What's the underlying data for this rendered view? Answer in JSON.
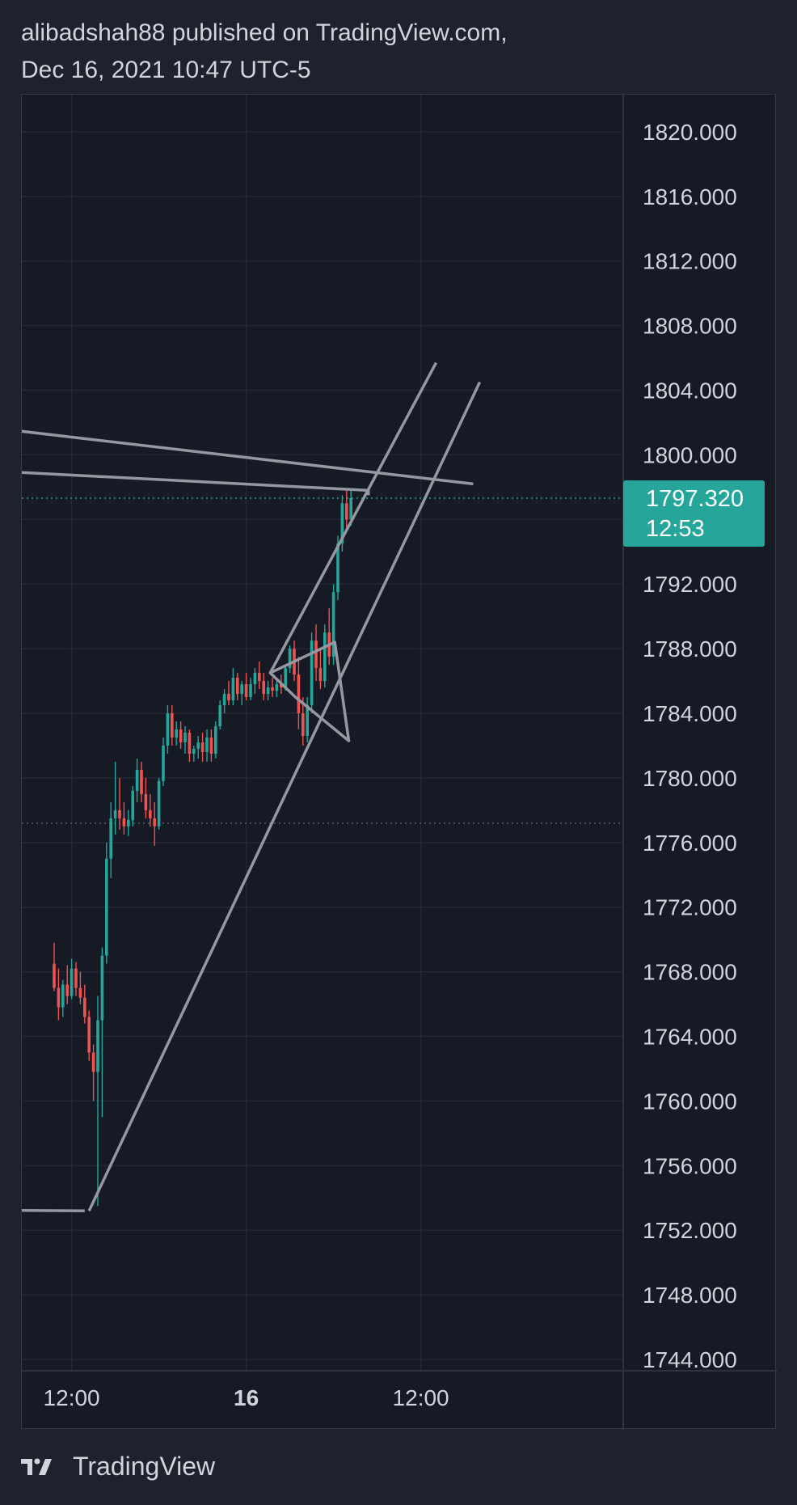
{
  "header": {
    "line1": "alibadshah88 published on TradingView.com,",
    "line2": "Dec 16, 2021 10:47 UTC-5"
  },
  "footer": {
    "brand": "TradingView"
  },
  "colors": {
    "background": "#161a25",
    "page": "#1e222d",
    "grid": "#232733",
    "up": "#26a69a",
    "down": "#ef5350",
    "drawing": "#9598a1",
    "price_tag": "#26a69a",
    "text": "#d1d4dc"
  },
  "chart_data": {
    "type": "candlestick",
    "symbol_timeframe": "intraday",
    "ylim": [
      1743.3,
      1822.3
    ],
    "y_ticks": [
      "1744.000",
      "1748.000",
      "1752.000",
      "1756.000",
      "1760.000",
      "1764.000",
      "1768.000",
      "1772.000",
      "1776.000",
      "1780.000",
      "1784.000",
      "1788.000",
      "1792.000",
      "1796.000",
      "1800.000",
      "1804.000",
      "1808.000",
      "1812.000",
      "1816.000",
      "1820.000"
    ],
    "x_ticks": [
      {
        "label": "12:00",
        "bold": false,
        "bar": 4
      },
      {
        "label": "16",
        "bold": true,
        "bar": 44
      },
      {
        "label": "12:00",
        "bold": false,
        "bar": 84
      }
    ],
    "last_price": {
      "value": "1797.320",
      "countdown": "12:53",
      "price": 1797.32
    },
    "reference_line": 1777.2,
    "candles": [
      [
        1768.5,
        1769.8,
        1766.8,
        1767.0
      ],
      [
        1767.0,
        1768.2,
        1765.0,
        1765.8
      ],
      [
        1765.8,
        1767.5,
        1765.2,
        1767.2
      ],
      [
        1767.2,
        1768.4,
        1766.0,
        1766.5
      ],
      [
        1766.5,
        1768.8,
        1766.3,
        1768.2
      ],
      [
        1768.2,
        1768.6,
        1766.5,
        1767.0
      ],
      [
        1767.0,
        1768.0,
        1766.0,
        1766.4
      ],
      [
        1766.4,
        1767.2,
        1764.8,
        1765.2
      ],
      [
        1765.2,
        1765.6,
        1762.5,
        1763.0
      ],
      [
        1763.0,
        1763.5,
        1760.0,
        1761.8
      ],
      [
        1761.8,
        1766.5,
        1753.5,
        1765.0
      ],
      [
        1765.0,
        1769.5,
        1759.0,
        1769.0
      ],
      [
        1769.0,
        1776.0,
        1768.5,
        1775.0
      ],
      [
        1775.0,
        1778.5,
        1773.8,
        1777.5
      ],
      [
        1777.5,
        1781.0,
        1776.5,
        1778.0
      ],
      [
        1778.0,
        1780.0,
        1776.8,
        1777.5
      ],
      [
        1777.5,
        1778.5,
        1776.5,
        1777.0
      ],
      [
        1777.0,
        1778.0,
        1776.4,
        1777.4
      ],
      [
        1777.4,
        1779.5,
        1777.0,
        1779.2
      ],
      [
        1779.2,
        1781.2,
        1778.5,
        1780.5
      ],
      [
        1780.5,
        1781.0,
        1778.5,
        1779.0
      ],
      [
        1779.0,
        1780.0,
        1777.5,
        1778.0
      ],
      [
        1778.0,
        1779.0,
        1777.0,
        1777.5
      ],
      [
        1777.5,
        1778.5,
        1775.8,
        1777.0
      ],
      [
        1777.0,
        1780.0,
        1776.8,
        1779.8
      ],
      [
        1779.8,
        1782.5,
        1779.5,
        1782.0
      ],
      [
        1782.0,
        1784.5,
        1781.5,
        1784.0
      ],
      [
        1784.0,
        1784.5,
        1782.0,
        1782.5
      ],
      [
        1782.5,
        1783.5,
        1782.0,
        1783.0
      ],
      [
        1783.0,
        1783.5,
        1781.8,
        1782.2
      ],
      [
        1782.2,
        1783.2,
        1781.5,
        1782.8
      ],
      [
        1782.8,
        1783.0,
        1781.0,
        1781.5
      ],
      [
        1781.5,
        1782.0,
        1781.0,
        1781.8
      ],
      [
        1781.8,
        1782.6,
        1781.2,
        1782.2
      ],
      [
        1782.2,
        1782.8,
        1781.0,
        1781.6
      ],
      [
        1781.6,
        1783.0,
        1781.0,
        1782.5
      ],
      [
        1782.5,
        1783.0,
        1781.0,
        1781.5
      ],
      [
        1781.5,
        1783.5,
        1781.2,
        1783.2
      ],
      [
        1783.2,
        1784.8,
        1783.0,
        1784.5
      ],
      [
        1784.5,
        1785.5,
        1784.0,
        1785.2
      ],
      [
        1785.2,
        1786.0,
        1784.5,
        1784.8
      ],
      [
        1784.8,
        1786.8,
        1784.5,
        1786.2
      ],
      [
        1786.2,
        1786.5,
        1784.8,
        1785.2
      ],
      [
        1785.2,
        1786.0,
        1784.5,
        1785.8
      ],
      [
        1785.8,
        1786.5,
        1784.8,
        1785.0
      ],
      [
        1785.0,
        1786.2,
        1784.8,
        1785.8
      ],
      [
        1785.8,
        1786.8,
        1785.2,
        1786.5
      ],
      [
        1786.5,
        1787.2,
        1785.5,
        1786.0
      ],
      [
        1786.0,
        1786.5,
        1784.8,
        1785.2
      ],
      [
        1785.2,
        1786.0,
        1784.8,
        1785.6
      ],
      [
        1785.6,
        1786.2,
        1785.0,
        1785.4
      ],
      [
        1785.4,
        1786.0,
        1785.0,
        1785.8
      ],
      [
        1785.8,
        1786.4,
        1785.2,
        1785.6
      ],
      [
        1785.6,
        1787.0,
        1785.4,
        1786.8
      ],
      [
        1786.8,
        1788.2,
        1786.5,
        1788.0
      ],
      [
        1788.0,
        1788.5,
        1786.0,
        1786.4
      ],
      [
        1786.4,
        1787.5,
        1783.0,
        1784.0
      ],
      [
        1784.0,
        1785.0,
        1782.0,
        1782.6
      ],
      [
        1782.6,
        1785.0,
        1782.2,
        1784.5
      ],
      [
        1784.5,
        1789.0,
        1784.0,
        1788.5
      ],
      [
        1788.5,
        1789.5,
        1786.0,
        1786.8
      ],
      [
        1786.8,
        1788.0,
        1785.5,
        1786.0
      ],
      [
        1786.0,
        1789.5,
        1785.6,
        1789.0
      ],
      [
        1789.0,
        1790.5,
        1787.0,
        1787.5
      ],
      [
        1787.5,
        1792.0,
        1787.0,
        1791.5
      ],
      [
        1791.5,
        1795.0,
        1791.0,
        1794.5
      ],
      [
        1794.5,
        1797.5,
        1794.0,
        1797.0
      ],
      [
        1797.0,
        1797.8,
        1795.5,
        1796.0
      ],
      [
        1796.0,
        1797.8,
        1795.6,
        1797.32
      ]
    ],
    "drawings": [
      {
        "name": "descending-trendline-upper",
        "points": [
          [
            -50,
            1802.8
          ],
          [
            96,
            1798.2
          ]
        ]
      },
      {
        "name": "descending-trendline-lower",
        "points": [
          [
            -50,
            1799.5
          ],
          [
            72,
            1797.8
          ],
          [
            72,
            1797.5
          ]
        ]
      },
      {
        "name": "ascending-channel-support",
        "points": [
          [
            8.0,
            1753.2
          ],
          [
            97.5,
            1804.5
          ]
        ]
      },
      {
        "name": "ascending-channel-resistance",
        "points": [
          [
            49.5,
            1786.5
          ],
          [
            87.5,
            1805.7
          ]
        ]
      },
      {
        "name": "bull-flag-pattern",
        "points": [
          [
            49.5,
            1786.5
          ],
          [
            64.3,
            1788.4
          ],
          [
            67.5,
            1782.3
          ],
          [
            55.3,
            1785.0
          ]
        ]
      },
      {
        "name": "support-level-left",
        "points": [
          [
            -50,
            1753.3
          ],
          [
            7.0,
            1753.2
          ]
        ]
      }
    ]
  }
}
